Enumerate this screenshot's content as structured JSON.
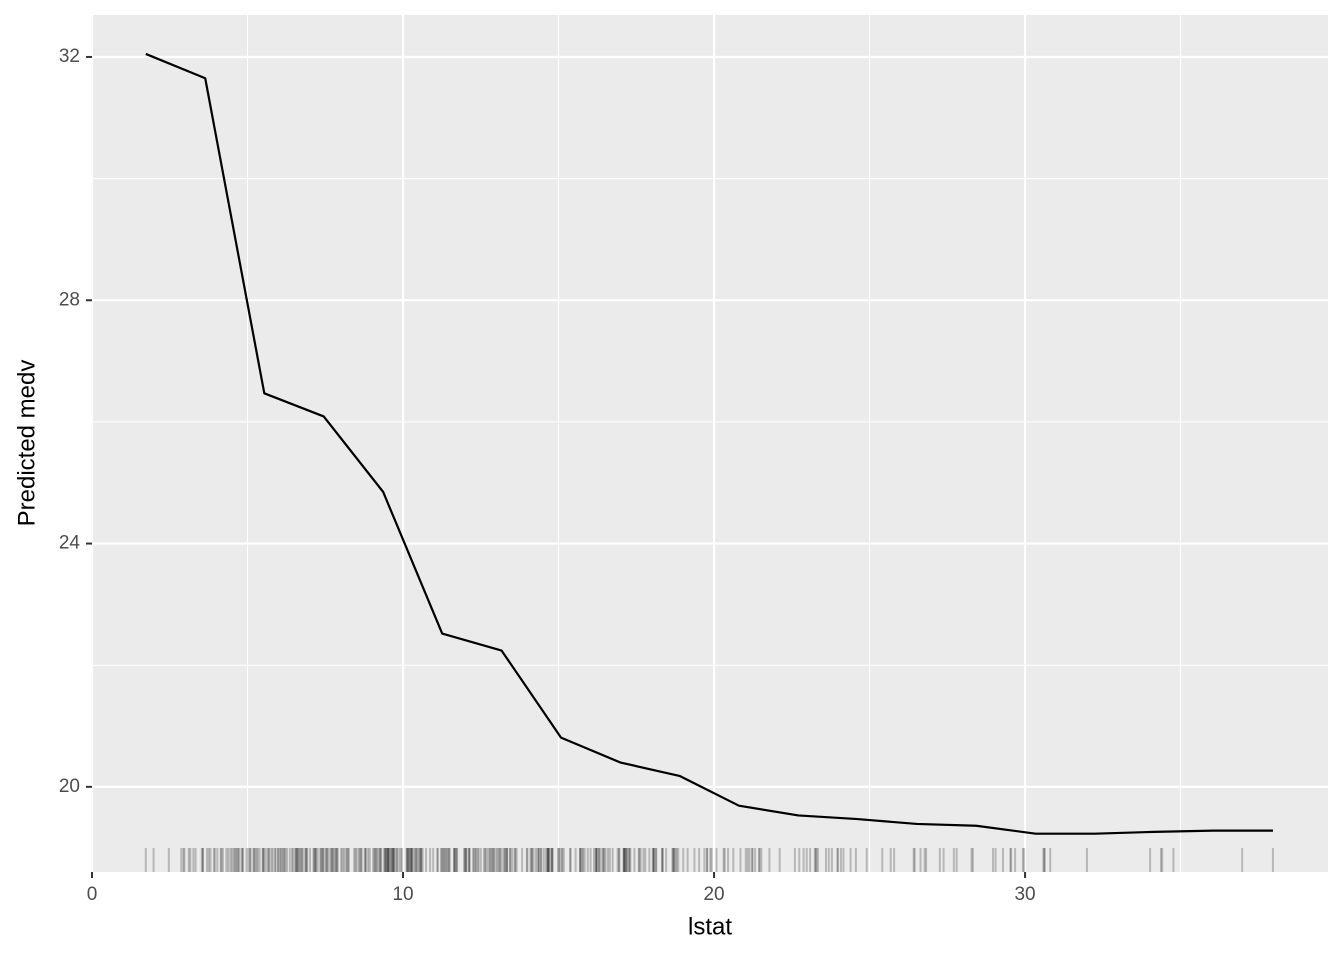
{
  "chart_data": {
    "type": "line",
    "x_label": "lstat",
    "y_label": "Predicted medv",
    "series": [
      {
        "color": "#000000",
        "x": [
          1.73,
          3.64,
          5.54,
          7.45,
          9.36,
          11.26,
          13.17,
          15.08,
          16.99,
          18.89,
          20.8,
          22.71,
          24.61,
          26.52,
          28.43,
          30.34,
          32.24,
          34.15,
          36.06,
          37.97
        ],
        "values": [
          32.05,
          31.65,
          26.47,
          26.09,
          24.85,
          22.52,
          22.24,
          20.81,
          20.4,
          20.18,
          19.69,
          19.53,
          19.47,
          19.39,
          19.36,
          19.23,
          19.23,
          19.26,
          19.28,
          19.28
        ]
      }
    ],
    "rug": {
      "color": "#000000",
      "x": [
        1.73,
        1.98,
        2.47,
        2.87,
        2.94,
        2.97,
        3.11,
        3.16,
        3.26,
        3.33,
        3.53,
        3.56,
        3.57,
        3.7,
        3.76,
        3.81,
        3.92,
        3.95,
        4.03,
        4.14,
        4.16,
        4.21,
        4.32,
        4.38,
        4.45,
        4.5,
        4.56,
        4.59,
        4.63,
        4.67,
        4.7,
        4.73,
        4.81,
        4.84,
        4.85,
        4.97,
        5.03,
        5.08,
        5.1,
        5.19,
        5.21,
        5.25,
        5.29,
        5.33,
        5.39,
        5.49,
        5.5,
        5.52,
        5.57,
        5.64,
        5.68,
        5.7,
        5.77,
        5.81,
        5.89,
        5.9,
        5.98,
        5.99,
        6.05,
        6.07,
        6.12,
        6.15,
        6.19,
        6.21,
        6.27,
        6.36,
        6.43,
        6.47,
        6.53,
        6.56,
        6.58,
        6.59,
        6.62,
        6.65,
        6.68,
        6.72,
        6.75,
        6.78,
        6.86,
        6.87,
        6.9,
        6.92,
        7.01,
        7.12,
        7.14,
        7.18,
        7.19,
        7.2,
        7.26,
        7.34,
        7.37,
        7.39,
        7.43,
        7.44,
        7.51,
        7.54,
        7.56,
        7.6,
        7.67,
        7.7,
        7.73,
        7.74,
        7.79,
        7.83,
        7.85,
        7.88,
        7.9,
        8.01,
        8.05,
        8.1,
        8.16,
        8.2,
        8.23,
        8.26,
        8.43,
        8.47,
        8.51,
        8.58,
        8.61,
        8.65,
        8.67,
        8.77,
        8.79,
        8.81,
        8.88,
        8.93,
        9.04,
        9.08,
        9.1,
        9.14,
        9.16,
        9.22,
        9.25,
        9.28,
        9.29,
        9.38,
        9.42,
        9.43,
        9.45,
        9.47,
        9.5,
        9.51,
        9.52,
        9.53,
        9.55,
        9.59,
        9.62,
        9.64,
        9.67,
        9.68,
        9.69,
        9.71,
        9.74,
        9.8,
        9.81,
        9.88,
        9.93,
        9.97,
        10.11,
        10.13,
        10.15,
        10.16,
        10.19,
        10.21,
        10.24,
        10.26,
        10.27,
        10.29,
        10.3,
        10.36,
        10.4,
        10.42,
        10.45,
        10.5,
        10.53,
        10.56,
        10.58,
        10.59,
        10.63,
        10.74,
        10.87,
        10.97,
        11.1,
        11.12,
        11.22,
        11.25,
        11.28,
        11.32,
        11.34,
        11.38,
        11.41,
        11.45,
        11.48,
        11.5,
        11.64,
        11.65,
        11.66,
        11.69,
        11.72,
        11.74,
        11.97,
        11.98,
        12.01,
        12.03,
        12.04,
        12.12,
        12.13,
        12.14,
        12.26,
        12.27,
        12.33,
        12.34,
        12.4,
        12.43,
        12.5,
        12.6,
        12.64,
        12.67,
        12.73,
        12.79,
        12.8,
        12.86,
        12.87,
        12.92,
        12.93,
        13.0,
        13.04,
        13.09,
        13.11,
        13.15,
        13.22,
        13.27,
        13.28,
        13.33,
        13.34,
        13.35,
        13.44,
        13.45,
        13.51,
        13.59,
        13.61,
        13.65,
        13.83,
        13.98,
        14.0,
        14.1,
        14.13,
        14.15,
        14.19,
        14.27,
        14.33,
        14.36,
        14.37,
        14.43,
        14.44,
        14.52,
        14.59,
        14.64,
        14.65,
        14.66,
        14.67,
        14.69,
        14.7,
        14.76,
        14.79,
        14.8,
        14.81,
        14.98,
        15.02,
        15.03,
        15.1,
        15.12,
        15.17,
        15.37,
        15.39,
        15.55,
        15.69,
        15.7,
        15.71,
        15.76,
        15.79,
        15.84,
        15.94,
        16.03,
        16.14,
        16.2,
        16.21,
        16.22,
        16.23,
        16.29,
        16.3,
        16.35,
        16.42,
        16.44,
        16.47,
        16.51,
        16.59,
        16.65,
        16.74,
        16.9,
        16.94,
        16.96,
        17.09,
        17.1,
        17.11,
        17.12,
        17.15,
        17.16,
        17.19,
        17.21,
        17.27,
        17.28,
        17.31,
        17.44,
        17.58,
        17.6,
        17.64,
        17.73,
        17.79,
        17.92,
        18.03,
        18.05,
        18.06,
        18.07,
        18.13,
        18.14,
        18.33,
        18.34,
        18.35,
        18.46,
        18.66,
        18.68,
        18.71,
        18.72,
        18.76,
        18.8,
        18.85,
        19.01,
        19.15,
        19.37,
        19.52,
        19.69,
        19.77,
        19.78,
        19.88,
        19.92,
        20.08,
        20.31,
        20.34,
        20.45,
        20.62,
        20.85,
        21.02,
        21.08,
        21.14,
        21.22,
        21.24,
        21.32,
        21.45,
        21.46,
        21.52,
        21.78,
        22.11,
        22.6,
        22.74,
        22.88,
        22.98,
        23.09,
        23.24,
        23.27,
        23.29,
        23.34,
        23.6,
        23.69,
        23.79,
        23.97,
        23.98,
        24.08,
        24.16,
        24.39,
        24.56,
        24.91,
        25.41,
        25.68,
        25.79,
        26.42,
        26.45,
        26.64,
        26.77,
        26.82,
        27.26,
        27.38,
        27.71,
        27.8,
        28.28,
        28.32,
        28.97,
        29.05,
        29.29,
        29.53,
        29.55,
        29.68,
        29.93,
        29.97,
        30.59,
        30.62,
        30.63,
        30.81,
        31.99,
        34.02,
        34.37,
        34.41,
        34.77,
        36.98,
        37.97
      ]
    },
    "xlim": [
      0,
      39.74
    ],
    "ylim": [
      18.6,
      32.69
    ],
    "xticks": [
      0,
      10,
      20,
      30
    ],
    "yticks": [
      20,
      24,
      28,
      32
    ],
    "xminor": [
      5,
      15,
      25,
      35
    ],
    "yminor": [
      22,
      26,
      30
    ],
    "grid": true
  }
}
